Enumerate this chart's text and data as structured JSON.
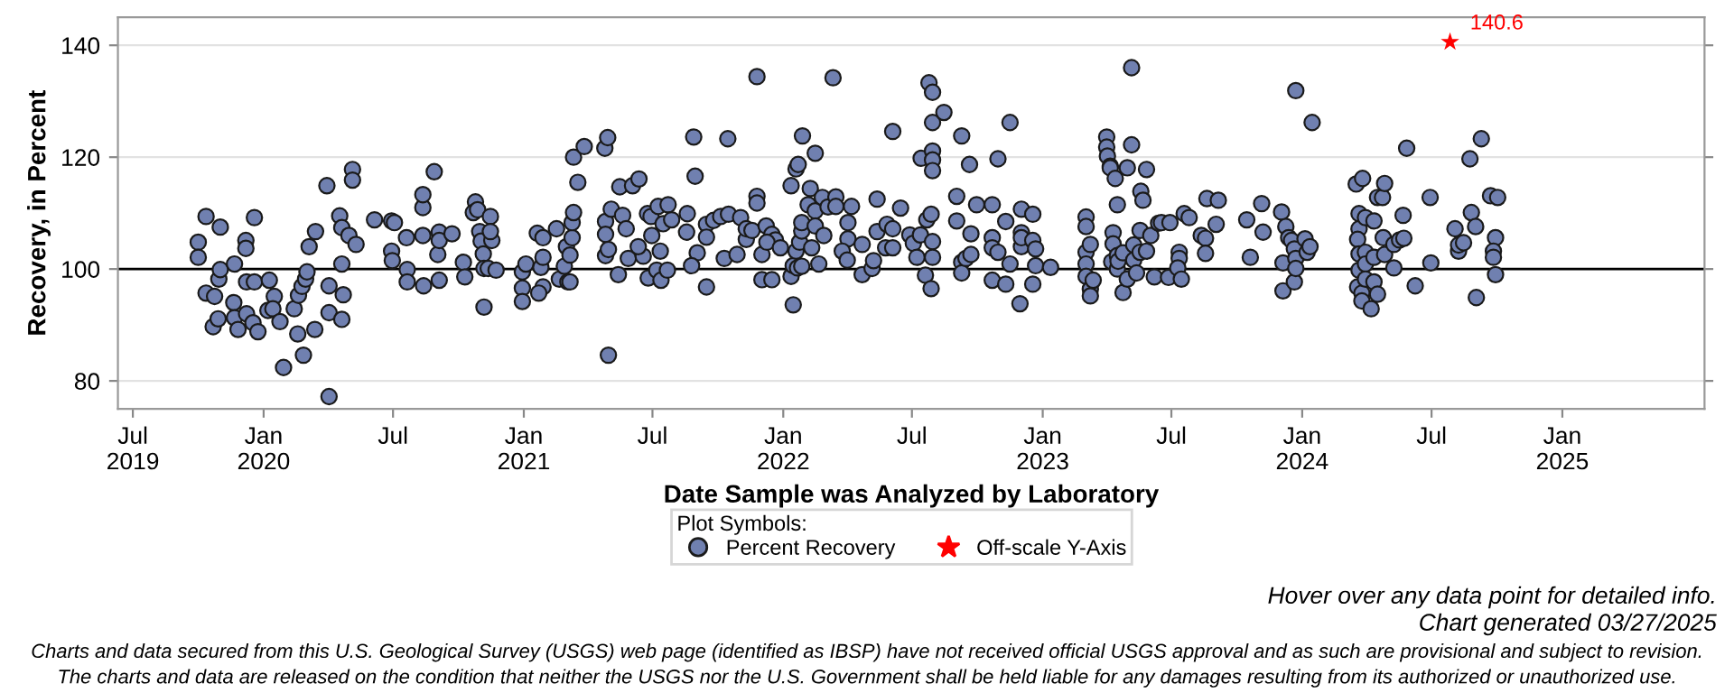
{
  "chart_data": {
    "type": "scatter",
    "xlabel": "Date Sample was Analyzed by Laboratory",
    "ylabel": "Recovery, in Percent",
    "legend_title": "Plot Symbols:",
    "legend": "bottom",
    "grid": "y",
    "xlim": [
      "2019-06-10",
      "2025-07-20"
    ],
    "ylim": [
      75,
      145
    ],
    "yticks": [
      80,
      100,
      120,
      140
    ],
    "xticks": [
      {
        "value": "2019-07-01",
        "label": "Jul\n2019"
      },
      {
        "value": "2020-01-01",
        "label": "Jan\n2020"
      },
      {
        "value": "2020-07-01",
        "label": "Jul"
      },
      {
        "value": "2021-01-01",
        "label": "Jan\n2021"
      },
      {
        "value": "2021-07-01",
        "label": "Jul"
      },
      {
        "value": "2022-01-01",
        "label": "Jan\n2022"
      },
      {
        "value": "2022-07-01",
        "label": "Jul"
      },
      {
        "value": "2023-01-01",
        "label": "Jan\n2023"
      },
      {
        "value": "2023-07-01",
        "label": "Jul"
      },
      {
        "value": "2024-01-01",
        "label": "Jan\n2024"
      },
      {
        "value": "2024-07-01",
        "label": "Jul"
      },
      {
        "value": "2025-01-01",
        "label": "Jan\n2025"
      }
    ],
    "ref_lines": [
      {
        "axis": "y",
        "value": 100,
        "label": null,
        "color": "#000000",
        "line_style": "solid"
      }
    ],
    "series": [
      {
        "name": "Percent Recovery",
        "color": "#7080b0",
        "marker": "circle",
        "x": [
          "2019-10-01",
          "2019-10-01",
          "2019-10-12",
          "2019-10-12",
          "2019-10-22",
          "2019-10-24",
          "2019-10-29",
          "2019-10-30",
          "2019-11-01",
          "2019-11-01",
          "2019-11-21",
          "2019-11-20",
          "2019-11-21",
          "2019-11-26",
          "2019-12-07",
          "2019-12-07",
          "2019-12-08",
          "2019-12-08",
          "2019-12-19",
          "2019-12-19",
          "2019-12-17",
          "2019-12-24",
          "2020-01-09",
          "2020-01-07",
          "2020-01-16",
          "2020-01-14",
          "2020-01-24",
          "2020-01-29",
          "2020-02-13",
          "2020-02-19",
          "2020-02-18",
          "2020-02-24",
          "2020-02-26",
          "2020-02-29",
          "2020-03-02",
          "2020-03-05",
          "2020-03-13",
          "2020-03-14",
          "2020-03-30",
          "2020-04-02",
          "2020-04-02",
          "2020-04-02",
          "2020-04-17",
          "2020-04-20",
          "2020-04-20",
          "2020-04-20",
          "2020-04-22",
          "2020-04-30",
          "2020-05-05",
          "2020-05-05",
          "2020-05-10",
          "2020-06-05",
          "2020-06-29",
          "2020-07-03",
          "2020-06-29",
          "2020-06-30",
          "2020-07-20",
          "2020-07-21",
          "2020-07-21",
          "2020-08-12",
          "2020-08-12",
          "2020-08-12",
          "2020-08-13",
          "2020-08-28",
          "2020-09-02",
          "2020-09-04",
          "2020-09-04",
          "2020-09-04",
          "2020-09-22",
          "2020-10-08",
          "2020-10-10",
          "2020-10-25",
          "2020-10-22",
          "2020-10-28",
          "2020-10-31",
          "2020-11-02",
          "2020-11-05",
          "2020-11-06",
          "2020-11-06",
          "2020-11-12",
          "2020-11-15",
          "2020-11-17",
          "2020-11-23",
          "2020-11-15",
          "2020-12-30",
          "2020-12-30",
          "2020-12-30",
          "2021-01-04",
          "2021-01-20",
          "2021-01-25",
          "2021-01-28",
          "2021-01-28",
          "2021-01-28",
          "2021-01-22",
          "2021-02-16",
          "2021-02-20",
          "2021-02-27",
          "2021-03-02",
          "2021-03-04",
          "2021-03-07",
          "2021-03-07",
          "2021-03-10",
          "2021-03-10",
          "2021-03-12",
          "2021-03-12",
          "2021-03-27",
          "2021-03-18",
          "2021-04-25",
          "2021-04-29",
          "2021-04-26",
          "2021-04-26",
          "2021-04-26",
          "2021-04-30",
          "2021-05-04",
          "2021-04-30",
          "2021-05-14",
          "2021-05-16",
          "2021-05-20",
          "2021-05-25",
          "2021-05-28",
          "2021-06-03",
          "2021-06-12",
          "2021-06-18",
          "2021-06-24",
          "2021-06-29",
          "2021-07-09",
          "2021-07-23",
          "2021-07-16",
          "2021-07-28",
          "2021-06-30",
          "2021-07-12",
          "2021-06-25",
          "2021-07-07",
          "2021-07-13",
          "2021-07-22",
          "2021-06-11",
          "2021-08-19",
          "2021-08-18",
          "2021-08-28",
          "2021-08-30",
          "2021-09-02",
          "2021-08-25",
          "2021-09-15",
          "2021-09-15",
          "2021-09-15",
          "2021-09-25",
          "2021-10-05",
          "2021-10-16",
          "2021-10-15",
          "2021-10-10",
          "2021-10-28",
          "2021-11-02",
          "2021-11-10",
          "2021-11-10",
          "2021-11-18",
          "2021-11-25",
          "2021-11-25",
          "2021-11-25",
          "2021-12-02",
          "2021-12-16",
          "2021-12-02",
          "2021-12-08",
          "2021-12-16",
          "2021-12-21",
          "2021-12-09",
          "2021-12-28",
          "2022-01-12",
          "2022-01-19",
          "2022-01-22",
          "2022-01-28",
          "2022-01-15",
          "2022-01-12",
          "2022-01-15",
          "2022-01-19",
          "2022-01-24",
          "2022-01-27",
          "2022-01-27",
          "2022-01-21",
          "2022-01-27",
          "2022-02-08",
          "2022-02-05",
          "2022-02-15",
          "2022-02-15",
          "2022-02-15",
          "2022-02-10",
          "2022-02-20",
          "2022-02-25",
          "2022-02-27",
          "2022-03-05",
          "2022-03-12",
          "2022-03-16",
          "2022-03-16",
          "2022-04-07",
          "2022-04-02",
          "2022-04-02",
          "2022-03-25",
          "2022-04-01",
          "2022-04-22",
          "2022-04-22",
          "2022-05-06",
          "2022-05-08",
          "2022-05-13",
          "2022-05-13",
          "2022-05-25",
          "2022-05-27",
          "2022-06-04",
          "2022-06-04",
          "2022-06-04",
          "2022-06-15",
          "2022-06-28",
          "2022-07-03",
          "2022-07-08",
          "2022-07-13",
          "2022-07-14",
          "2022-07-20",
          "2022-07-22",
          "2022-07-25",
          "2022-07-30",
          "2022-07-30",
          "2022-07-30",
          "2022-07-30",
          "2022-07-30",
          "2022-07-28",
          "2022-07-30",
          "2022-07-30",
          "2022-07-28",
          "2022-08-15",
          "2022-09-02",
          "2022-09-02",
          "2022-09-09",
          "2022-09-09",
          "2022-09-09",
          "2022-09-15",
          "2022-09-20",
          "2022-09-22",
          "2022-09-22",
          "2022-09-30",
          "2022-10-22",
          "2022-10-22",
          "2022-10-22",
          "2022-10-22",
          "2022-10-30",
          "2022-10-30",
          "2022-11-10",
          "2022-11-10",
          "2022-11-16",
          "2022-11-16",
          "2022-11-30",
          "2022-12-02",
          "2022-12-02",
          "2022-12-02",
          "2022-12-02",
          "2022-12-18",
          "2022-12-18",
          "2022-12-18",
          "2022-12-22",
          "2022-12-22",
          "2023-01-12",
          "2023-03-03",
          "2023-03-03",
          "2023-03-03",
          "2023-03-09",
          "2023-03-03",
          "2023-03-03",
          "2023-03-09",
          "2023-03-09",
          "2023-03-13",
          "2023-04-01",
          "2023-04-01",
          "2023-04-02",
          "2023-04-06",
          "2023-04-06",
          "2023-04-13",
          "2023-04-10",
          "2023-04-10",
          "2023-04-08",
          "2023-04-16",
          "2023-04-16",
          "2023-04-16",
          "2023-04-17",
          "2023-04-24",
          "2023-04-24",
          "2023-04-30",
          "2023-04-30",
          "2023-05-06",
          "2023-05-06",
          "2023-05-09",
          "2023-05-09",
          "2023-05-13",
          "2023-05-19",
          "2023-05-22",
          "2023-05-27",
          "2023-05-18",
          "2023-05-18",
          "2023-05-27",
          "2023-06-02",
          "2023-06-07",
          "2023-06-13",
          "2023-06-17",
          "2023-06-29",
          "2023-06-27",
          "2023-07-12",
          "2023-07-12",
          "2023-07-10",
          "2023-07-15",
          "2023-07-19",
          "2023-07-26",
          "2023-08-12",
          "2023-08-18",
          "2023-08-18",
          "2023-08-20",
          "2023-09-02",
          "2023-09-05",
          "2023-10-15",
          "2023-10-20",
          "2023-11-05",
          "2023-11-07",
          "2023-12-03",
          "2023-12-05",
          "2023-12-05",
          "2023-12-09",
          "2023-12-13",
          "2023-12-17",
          "2023-12-21",
          "2023-12-21",
          "2023-12-23",
          "2023-12-23",
          "2023-12-23",
          "2024-01-05",
          "2024-01-08",
          "2024-01-12",
          "2024-01-15",
          "2024-03-17",
          "2024-03-26",
          "2024-03-21",
          "2024-03-21",
          "2024-03-19",
          "2024-03-21",
          "2024-03-21",
          "2024-03-19",
          "2024-03-25",
          "2024-03-25",
          "2024-03-30",
          "2024-03-30",
          "2024-03-30",
          "2024-03-30",
          "2024-04-07",
          "2024-04-11",
          "2024-04-11",
          "2024-04-11",
          "2024-04-16",
          "2024-04-16",
          "2024-04-23",
          "2024-04-26",
          "2024-04-24",
          "2024-04-26",
          "2024-05-09",
          "2024-05-09",
          "2024-05-17",
          "2024-05-23",
          "2024-05-22",
          "2024-05-27",
          "2024-06-08",
          "2024-06-29",
          "2024-06-30",
          "2024-08-03",
          "2024-08-08",
          "2024-08-08",
          "2024-08-15",
          "2024-08-24",
          "2024-08-26",
          "2024-09-01",
          "2024-09-02",
          "2024-09-09",
          "2024-09-22",
          "2024-10-02",
          "2024-09-29",
          "2024-09-26",
          "2024-09-26",
          "2024-09-29"
        ],
        "values": [
          104.8,
          102.1,
          109.4,
          95.7,
          89.7,
          95.1,
          91.1,
          98.2,
          107.5,
          99.9,
          100.9,
          94.0,
          91.3,
          89.2,
          105.1,
          103.7,
          92.0,
          97.7,
          97.7,
          109.2,
          90.4,
          88.8,
          98.0,
          92.6,
          95.1,
          92.9,
          90.6,
          82.4,
          92.9,
          95.3,
          88.4,
          96.9,
          84.6,
          98.2,
          99.5,
          104.0,
          89.2,
          106.7,
          114.9,
          97.0,
          92.2,
          77.2,
          109.5,
          91.0,
          107.4,
          100.9,
          95.4,
          106.0,
          117.8,
          115.9,
          104.4,
          108.8,
          108.6,
          108.3,
          103.2,
          101.5,
          105.6,
          99.9,
          97.7,
          111.0,
          113.3,
          106.0,
          97.0,
          117.4,
          102.6,
          106.6,
          105.1,
          98.0,
          106.3,
          101.2,
          98.6,
          112.0,
          110.1,
          110.6,
          106.7,
          105.0,
          102.7,
          100.1,
          93.2,
          100.1,
          109.4,
          105.1,
          99.8,
          106.7,
          99.5,
          96.6,
          94.2,
          100.9,
          106.4,
          100.3,
          105.6,
          102.1,
          96.8,
          95.7,
          107.2,
          98.2,
          100.5,
          104.0,
          97.7,
          97.7,
          102.5,
          105.6,
          108.3,
          110.1,
          120.0,
          121.9,
          115.5,
          121.6,
          123.5,
          108.5,
          106.2,
          102.4,
          103.5,
          110.7,
          84.6,
          99.0,
          114.7,
          109.6,
          107.2,
          101.9,
          114.9,
          116.1,
          102.3,
          109.9,
          109.4,
          111.2,
          111.5,
          108.1,
          108.8,
          106.0,
          103.2,
          98.4,
          99.8,
          98.0,
          99.8,
          104.0,
          109.9,
          106.6,
          123.6,
          116.6,
          102.9,
          100.6,
          96.8,
          108.0,
          105.7,
          108.7,
          109.4,
          109.8,
          123.3,
          101.9,
          102.6,
          109.2,
          105.3,
          107.2,
          106.9,
          134.4,
          113.0,
          111.8,
          98.1,
          98.1,
          102.6,
          107.7,
          106.2,
          105.2,
          104.8,
          103.8,
          114.9,
          117.9,
          118.7,
          123.8,
          93.6,
          98.7,
          100.6,
          103.2,
          104.8,
          106.8,
          108.3,
          100.2,
          100.5,
          114.4,
          111.5,
          120.7,
          110.4,
          107.7,
          103.8,
          100.9,
          112.8,
          106.0,
          111.1,
          134.2,
          112.9,
          111.2,
          111.2,
          108.3,
          105.4,
          103.2,
          101.6,
          104.4,
          99.0,
          100.1,
          101.5,
          112.5,
          106.7,
          103.8,
          108.0,
          107.2,
          124.6,
          103.8,
          110.9,
          106.1,
          104.6,
          102.1,
          106.1,
          119.8,
          98.9,
          108.8,
          133.3,
          131.6,
          126.2,
          121.1,
          119.5,
          117.6,
          109.8,
          104.9,
          102.1,
          96.5,
          128.0,
          108.6,
          113.0,
          123.8,
          101.2,
          99.3,
          101.9,
          118.7,
          106.3,
          102.6,
          111.5,
          111.5,
          105.6,
          103.8,
          98.0,
          119.7,
          103.0,
          108.5,
          97.3,
          126.2,
          100.9,
          93.8,
          110.7,
          106.5,
          104.0,
          105.6,
          109.8,
          105.1,
          97.3,
          103.6,
          100.6,
          100.3,
          109.3,
          107.6,
          103.0,
          104.4,
          100.9,
          98.7,
          96.4,
          95.2,
          98.0,
          123.6,
          121.8,
          120.2,
          118.4,
          118.1,
          116.2,
          106.5,
          104.5,
          101.3,
          111.5,
          102.4,
          100.0,
          101.4,
          102.9,
          95.8,
          118.1,
          98.2,
          136.0,
          122.2,
          104.3,
          101.6,
          99.3,
          113.9,
          112.3,
          117.8,
          103.0,
          106.9,
          103.2,
          106.0,
          98.6,
          108.2,
          108.3,
          108.3,
          98.5,
          103.0,
          101.9,
          100.2,
          98.2,
          109.9,
          109.2,
          106.0,
          105.5,
          102.8,
          112.6,
          108.0,
          112.3,
          108.8,
          102.1,
          111.7,
          106.6,
          110.2,
          101.1,
          96.1,
          107.6,
          105.6,
          105.1,
          97.7,
          103.6,
          131.9,
          101.9,
          100.1,
          105.4,
          103.0,
          104.0,
          126.2,
          115.2,
          116.2,
          109.9,
          107.2,
          105.3,
          102.7,
          99.8,
          96.8,
          95.7,
          94.3,
          109.2,
          103.0,
          100.9,
          98.2,
          92.9,
          108.6,
          102.1,
          97.7,
          95.5,
          112.8,
          112.8,
          115.3,
          105.6,
          102.6,
          104.4,
          100.2,
          105.2,
          105.5,
          109.6,
          121.6,
          97.0,
          112.8,
          101.1,
          107.2,
          103.2,
          104.3,
          104.7,
          119.7,
          110.1,
          107.6,
          94.9,
          123.3,
          113.1,
          112.8,
          105.6,
          103.2,
          102.1,
          99.0
        ]
      },
      {
        "name": "Off-scale Y-Axis",
        "color": "#ff0000",
        "marker": "star",
        "x": [
          "2024-07-27"
        ],
        "values": [
          140.6
        ],
        "value_labels": [
          "140.6"
        ]
      }
    ],
    "annotations": [
      "Hover over any data point for detailed info.",
      "Chart generated 03/27/2025",
      "Charts and data secured from this U.S. Geological Survey (USGS) web page (identified as IBSP) have not received official USGS approval and as such are provisional and subject to revision.",
      "The charts and data are released on the condition that neither the USGS nor the U.S. Government shall be held liable for any damages resulting from its authorized or unauthorized use."
    ]
  }
}
